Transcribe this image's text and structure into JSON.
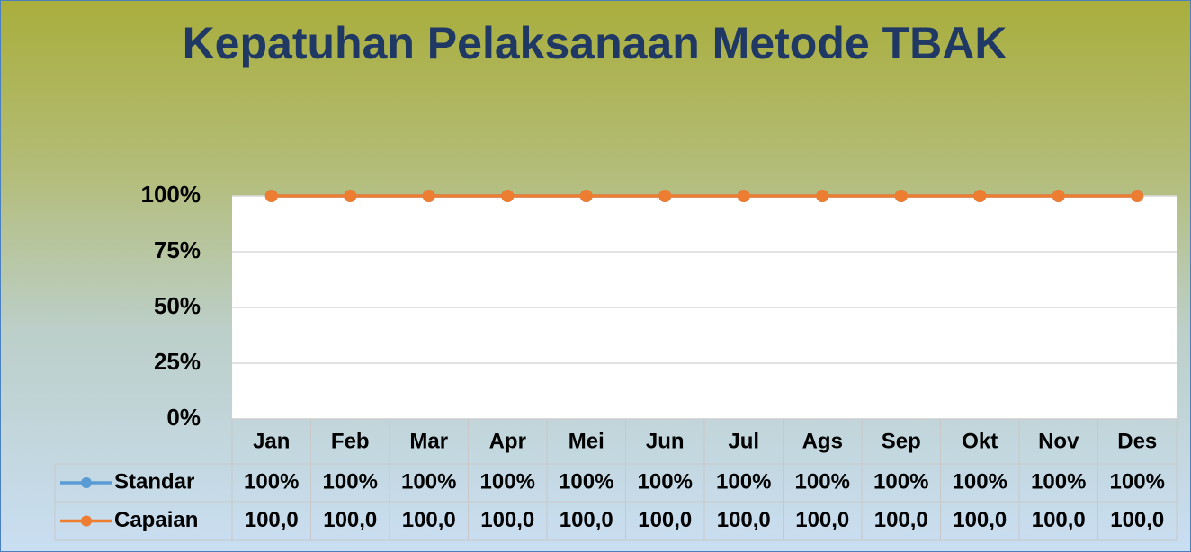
{
  "chart_data": {
    "type": "line",
    "title": "Kepatuhan Pelaksanaan Metode TBAK",
    "categories": [
      "Jan",
      "Feb",
      "Mar",
      "Apr",
      "Mei",
      "Jun",
      "Jul",
      "Ags",
      "Sep",
      "Okt",
      "Nov",
      "Des"
    ],
    "series": [
      {
        "name": "Standar",
        "color": "#5b9bd5",
        "values": [
          100,
          100,
          100,
          100,
          100,
          100,
          100,
          100,
          100,
          100,
          100,
          100
        ],
        "value_labels": [
          "100%",
          "100%",
          "100%",
          "100%",
          "100%",
          "100%",
          "100%",
          "100%",
          "100%",
          "100%",
          "100%",
          "100%"
        ]
      },
      {
        "name": "Capaian",
        "color": "#ed7d31",
        "values": [
          100,
          100,
          100,
          100,
          100,
          100,
          100,
          100,
          100,
          100,
          100,
          100
        ],
        "value_labels": [
          "100,0",
          "100,0",
          "100,0",
          "100,0",
          "100,0",
          "100,0",
          "100,0",
          "100,0",
          "100,0",
          "100,0",
          "100,0",
          "100,0"
        ]
      }
    ],
    "ylim": [
      0,
      100
    ],
    "yticks": [
      {
        "value": 0,
        "label": "0%"
      },
      {
        "value": 25,
        "label": "25%"
      },
      {
        "value": 50,
        "label": "50%"
      },
      {
        "value": 75,
        "label": "75%"
      },
      {
        "value": 100,
        "label": "100%"
      }
    ],
    "grid": true
  }
}
